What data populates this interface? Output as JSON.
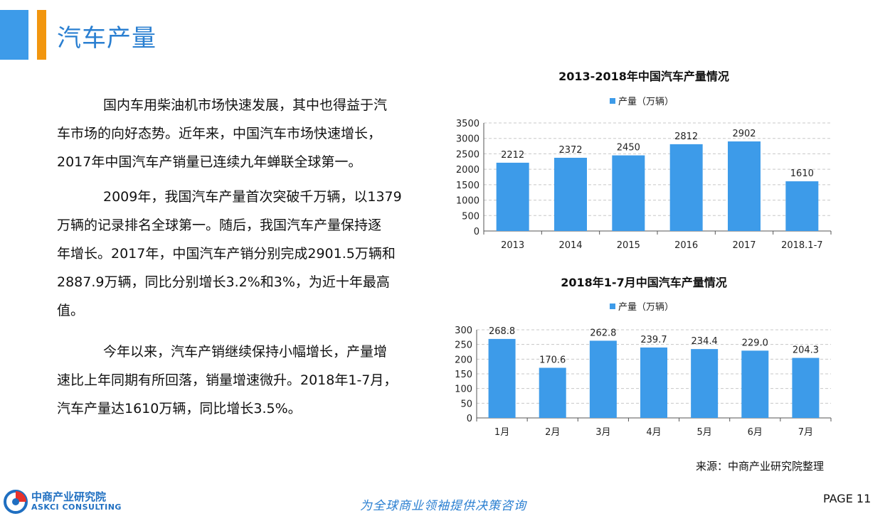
{
  "header": {
    "title": "汽车产量"
  },
  "body": {
    "paragraphs": [
      {
        "lines": [
          "国内车用柴油机市场快速发展，其中也得益于汽",
          "车市场的向好态势。近年来，中国汽车市场快速增长，",
          "2017年中国汽车产销量已连续九年蝉联全球第一。"
        ]
      },
      {
        "lines": [
          "2009年，我国汽车产量首次突破千万辆，以1379",
          "万辆的记录排名全球第一。随后，我国汽车产量保持逐",
          "年增长。2017年，中国汽车产销分别完成2901.5万辆和",
          "2887.9万辆，同比分别增长3.2%和3%，为近十年最高",
          "值。"
        ]
      },
      {
        "lines": [
          "今年以来，汽车产销继续保持小幅增长，产量增",
          "速比上年同期有所回落，销量增速微升。2018年1-7月，",
          "汽车产量达1610万辆，同比增长3.5%。"
        ]
      }
    ]
  },
  "chart_data": [
    {
      "type": "bar",
      "title": "2013-2018年中国汽车产量情况",
      "categories": [
        "2013",
        "2014",
        "2015",
        "2016",
        "2017",
        "2018.1-7"
      ],
      "series": [
        {
          "name": "产量（万辆）",
          "values": [
            2212,
            2372,
            2450,
            2812,
            2902,
            1610
          ],
          "labels": [
            "2212",
            "2372",
            "2450",
            "2812",
            "2902",
            "1610"
          ]
        }
      ],
      "ylim": [
        0,
        3500
      ],
      "yticks": [
        0,
        500,
        1000,
        1500,
        2000,
        2500,
        3000,
        3500
      ],
      "grid": true,
      "legend": "top-center",
      "color": "#3d9be9"
    },
    {
      "type": "bar",
      "title": "2018年1-7月中国汽车产量情况",
      "categories": [
        "1月",
        "2月",
        "3月",
        "4月",
        "5月",
        "6月",
        "7月"
      ],
      "series": [
        {
          "name": "产量（万辆）",
          "values": [
            268.8,
            170.6,
            262.8,
            239.7,
            234.4,
            229.0,
            204.3
          ],
          "labels": [
            "268.8",
            "170.6",
            "262.8",
            "239.7",
            "234.4",
            "229.0",
            "204.3"
          ]
        }
      ],
      "ylim": [
        0,
        300
      ],
      "yticks": [
        0,
        50,
        100,
        150,
        200,
        250,
        300
      ],
      "grid": true,
      "legend": "top-center",
      "color": "#3d9be9"
    }
  ],
  "footer": {
    "source": "来源：中商产业研究院整理",
    "logo_cn": "中商产业研究院",
    "logo_en": "ASKCI CONSULTING",
    "slogan": "为全球商业领袖提供决策咨询",
    "page": "PAGE 11"
  }
}
